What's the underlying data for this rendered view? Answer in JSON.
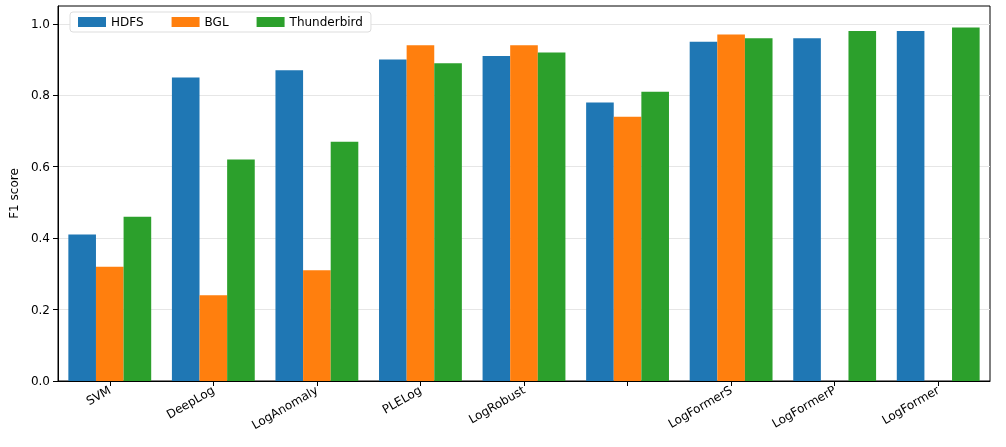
{
  "chart_data": {
    "type": "bar",
    "ylabel": "F1 score",
    "categories": [
      "SVM",
      "DeepLog",
      "LogAnomaly",
      "PLELog",
      "LogRobust",
      null,
      "LogFormerS",
      "LogFormerP",
      "LogFormer"
    ],
    "series": [
      {
        "name": "HDFS",
        "color": "#1f77b4",
        "values": [
          0.41,
          0.85,
          0.87,
          0.9,
          0.91,
          0.78,
          0.95,
          0.96,
          0.98
        ]
      },
      {
        "name": "BGL",
        "color": "#ff7f0e",
        "values": [
          0.32,
          0.24,
          0.31,
          0.94,
          0.94,
          0.74,
          0.97,
          null,
          null
        ]
      },
      {
        "name": "Thunderbird",
        "color": "#2ca02c",
        "values": [
          0.46,
          0.62,
          0.67,
          0.89,
          0.92,
          0.81,
          0.96,
          0.98,
          0.99
        ]
      }
    ],
    "ylim": [
      0,
      1.05
    ],
    "yticks": [
      {
        "value": 0,
        "label": "0.0"
      },
      0.2,
      0.4,
      0.6,
      0.8,
      {
        "value": 1,
        "label": "1.0"
      }
    ],
    "grid": "y",
    "legend": "top left"
  }
}
